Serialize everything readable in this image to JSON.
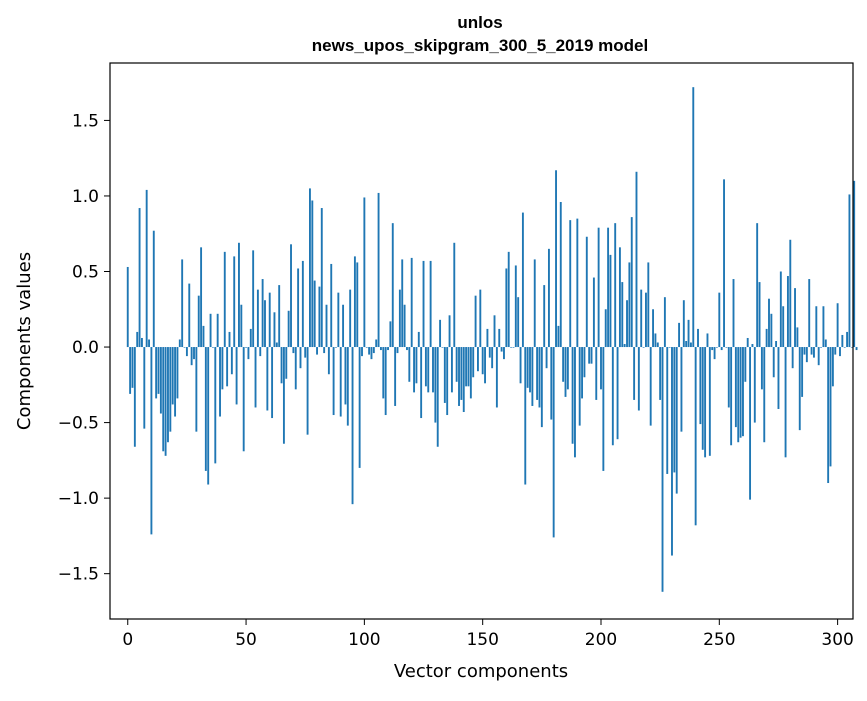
{
  "chart_data": {
    "type": "bar",
    "title": "unlos",
    "subtitle": "news_upos_skipgram_300_5_2019 model",
    "xlabel": "Vector components",
    "ylabel": "Components values",
    "xlim": [
      -7.5,
      306.5
    ],
    "ylim": [
      -1.8,
      1.88
    ],
    "xticks": [
      0,
      50,
      100,
      150,
      200,
      250,
      300
    ],
    "xtick_labels": [
      "0",
      "50",
      "100",
      "150",
      "200",
      "250",
      "300"
    ],
    "yticks": [
      -1.5,
      -1.0,
      -0.5,
      0.0,
      0.5,
      1.0,
      1.5
    ],
    "ytick_labels": [
      "−1.5",
      "−1.0",
      "−0.5",
      "0.0",
      "0.5",
      "1.0",
      "1.5"
    ],
    "bar_color": "#1f77b4",
    "grid": false,
    "values": [
      0.53,
      -0.31,
      -0.27,
      -0.66,
      0.1,
      0.92,
      0.06,
      -0.54,
      1.04,
      0.05,
      -1.24,
      0.77,
      -0.34,
      -0.31,
      -0.44,
      -0.69,
      -0.72,
      -0.63,
      -0.56,
      -0.38,
      -0.46,
      -0.34,
      0.05,
      0.58,
      0.0,
      -0.06,
      0.42,
      -0.12,
      -0.08,
      -0.56,
      0.34,
      0.66,
      0.14,
      -0.82,
      -0.91,
      0.22,
      0.0,
      -0.77,
      0.22,
      -0.46,
      -0.28,
      0.63,
      -0.26,
      0.1,
      -0.18,
      0.6,
      -0.38,
      0.69,
      0.28,
      -0.69,
      0.0,
      -0.08,
      0.12,
      0.64,
      -0.4,
      0.38,
      -0.06,
      0.45,
      0.31,
      -0.42,
      0.36,
      -0.47,
      0.23,
      0.03,
      0.41,
      -0.24,
      -0.64,
      -0.21,
      0.24,
      0.68,
      -0.04,
      -0.28,
      0.52,
      -0.14,
      0.57,
      -0.07,
      -0.58,
      1.05,
      0.97,
      0.44,
      -0.05,
      0.4,
      0.92,
      -0.04,
      0.28,
      -0.18,
      0.55,
      -0.45,
      0.0,
      0.36,
      -0.46,
      0.28,
      -0.38,
      -0.52,
      0.38,
      -1.04,
      0.6,
      0.56,
      -0.8,
      -0.06,
      0.99,
      0.0,
      -0.05,
      -0.08,
      -0.04,
      0.05,
      1.02,
      -0.02,
      -0.34,
      -0.45,
      -0.02,
      0.17,
      0.82,
      -0.39,
      -0.04,
      0.38,
      0.58,
      0.28,
      -0.02,
      -0.23,
      0.59,
      -0.3,
      -0.24,
      0.1,
      -0.47,
      0.57,
      -0.26,
      -0.3,
      0.57,
      -0.3,
      -0.5,
      -0.66,
      0.18,
      0.0,
      -0.37,
      -0.45,
      0.21,
      -0.3,
      0.69,
      -0.23,
      -0.39,
      -0.35,
      -0.43,
      -0.26,
      -0.26,
      -0.34,
      -0.2,
      0.34,
      -0.16,
      0.38,
      -0.18,
      -0.24,
      0.12,
      -0.07,
      -0.14,
      0.21,
      -0.4,
      0.12,
      -0.03,
      -0.08,
      0.52,
      0.63,
      0.0,
      0.0,
      0.54,
      0.33,
      -0.24,
      0.89,
      -0.91,
      -0.27,
      -0.3,
      -0.39,
      0.58,
      -0.35,
      -0.4,
      -0.53,
      0.41,
      -0.14,
      0.65,
      -0.48,
      -1.26,
      1.17,
      0.14,
      0.96,
      -0.23,
      -0.33,
      -0.28,
      0.84,
      -0.64,
      -0.73,
      0.85,
      -0.52,
      -0.34,
      -0.2,
      0.73,
      -0.11,
      -0.11,
      0.46,
      -0.35,
      0.79,
      -0.28,
      -0.82,
      0.25,
      0.79,
      0.61,
      -0.65,
      0.82,
      -0.61,
      0.66,
      0.43,
      0.02,
      0.31,
      0.56,
      0.86,
      -0.35,
      1.16,
      -0.42,
      0.38,
      0.0,
      0.36,
      0.56,
      -0.52,
      0.25,
      0.09,
      0.03,
      -0.35,
      -1.62,
      0.33,
      -0.84,
      0.0,
      -1.38,
      -0.83,
      -0.97,
      0.16,
      -0.56,
      0.31,
      0.04,
      0.18,
      0.03,
      1.72,
      -1.18,
      0.12,
      -0.51,
      -0.68,
      -0.73,
      0.09,
      -0.72,
      -0.02,
      -0.08,
      0.0,
      0.36,
      -0.02,
      1.11,
      0.0,
      -0.4,
      -0.65,
      0.45,
      -0.53,
      -0.63,
      -0.6,
      -0.59,
      -0.23,
      0.06,
      -1.01,
      0.02,
      -0.5,
      0.82,
      0.43,
      -0.28,
      -0.63,
      0.12,
      0.32,
      0.22,
      -0.2,
      0.04,
      -0.41,
      0.5,
      0.27,
      -0.73,
      0.47,
      0.71,
      -0.14,
      0.39,
      0.13,
      -0.55,
      -0.33,
      -0.05,
      -0.1,
      0.45,
      -0.05,
      -0.07,
      0.27,
      -0.12,
      0.0,
      0.27,
      0.05,
      -0.9,
      -0.79,
      -0.26,
      -0.05,
      0.29,
      -0.06,
      0.08,
      0.0,
      0.1,
      1.01,
      0.0,
      1.1,
      -0.02
    ]
  }
}
